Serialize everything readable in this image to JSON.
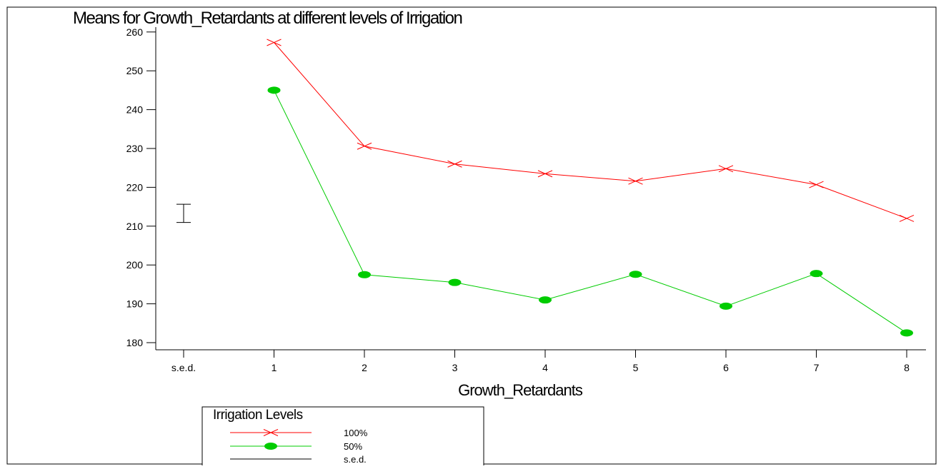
{
  "chart_data": {
    "type": "line",
    "title": "Means for Growth_Retardants at different levels of Irrigation",
    "xlabel": "Growth_Retardants",
    "ylabel": "",
    "categories": [
      "s.e.d.",
      "1",
      "2",
      "3",
      "4",
      "5",
      "6",
      "7",
      "8"
    ],
    "ylim": [
      178,
      262
    ],
    "yticks": [
      180,
      190,
      200,
      210,
      220,
      230,
      240,
      250,
      260
    ],
    "series": [
      {
        "name": "100%",
        "marker": "x",
        "color": "#ff0000",
        "x": [
          "1",
          "2",
          "3",
          "4",
          "5",
          "6",
          "7",
          "8"
        ],
        "values": [
          257.3,
          230.6,
          226.0,
          223.5,
          221.6,
          224.8,
          220.7,
          212.0
        ]
      },
      {
        "name": "50%",
        "marker": "filled-circle",
        "color": "#00cc00",
        "x": [
          "1",
          "2",
          "3",
          "4",
          "5",
          "6",
          "7",
          "8"
        ],
        "values": [
          245.0,
          197.5,
          195.5,
          191.0,
          197.6,
          189.4,
          197.8,
          182.5
        ]
      }
    ],
    "sed": {
      "category": "s.e.d.",
      "center": 213.3,
      "half_width": 2.35
    },
    "legend": {
      "title": "Irrigation Levels",
      "entries": [
        "100%",
        "50%",
        "s.e.d."
      ],
      "placement": "bottom-left"
    },
    "grid": false
  }
}
